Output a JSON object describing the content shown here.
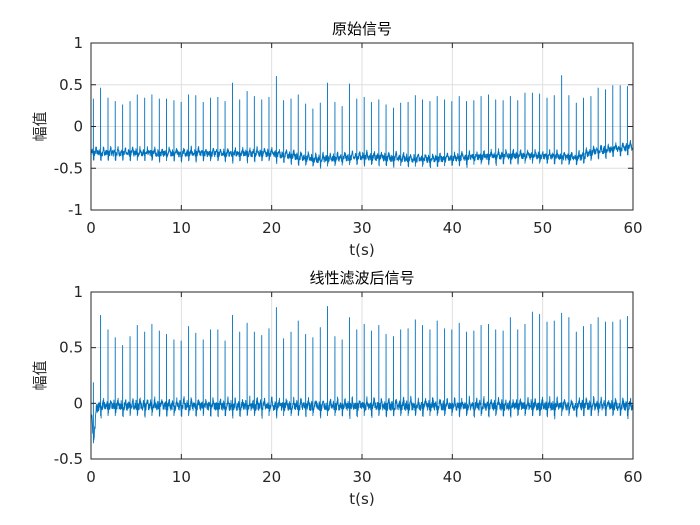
{
  "figure": {
    "background": "#ffffff",
    "line_color": "#0072BD",
    "grid_color": "#dfdfdf",
    "axis_color": "#262626"
  },
  "chart_data": [
    {
      "type": "line",
      "title": "原始信号",
      "xlabel": "t(s)",
      "ylabel": "幅值",
      "xlim": [
        0,
        60
      ],
      "ylim": [
        -1,
        1
      ],
      "xticks": [
        0,
        10,
        20,
        30,
        40,
        50,
        60
      ],
      "xtick_labels": [
        "0",
        "10",
        "20",
        "30",
        "40",
        "50",
        "60"
      ],
      "yticks": [
        -1,
        -0.5,
        0,
        0.5,
        1
      ],
      "ytick_labels": [
        "-1",
        "-0.5",
        "0",
        "0.5",
        "1"
      ],
      "grid": true,
      "series": [
        {
          "name": "原始信号",
          "description": "ECG-like signal, ~74 beats over 60 s, baseline wander around -0.35",
          "beat_period_s": 0.81,
          "first_beat_s": 0.25,
          "baseline": [
            [
              0,
              -0.32
            ],
            [
              10,
              -0.33
            ],
            [
              20,
              -0.33
            ],
            [
              25,
              -0.4
            ],
            [
              30,
              -0.37
            ],
            [
              37,
              -0.4
            ],
            [
              45,
              -0.36
            ],
            [
              50,
              -0.36
            ],
            [
              54,
              -0.38
            ],
            [
              56,
              -0.3
            ],
            [
              60,
              -0.25
            ]
          ],
          "peaks": [
            0.33,
            0.46,
            0.34,
            0.3,
            0.26,
            0.3,
            0.38,
            0.34,
            0.38,
            0.33,
            0.33,
            0.31,
            0.29,
            0.38,
            0.37,
            0.29,
            0.34,
            0.35,
            0.3,
            0.52,
            0.32,
            0.42,
            0.36,
            0.32,
            0.35,
            0.6,
            0.31,
            0.33,
            0.38,
            0.27,
            0.21,
            0.28,
            0.52,
            0.29,
            0.24,
            0.51,
            0.33,
            0.35,
            0.29,
            0.32,
            0.26,
            0.22,
            0.28,
            0.29,
            0.37,
            0.32,
            0.3,
            0.36,
            0.32,
            0.3,
            0.36,
            0.3,
            0.31,
            0.36,
            0.38,
            0.32,
            0.31,
            0.36,
            0.31,
            0.4,
            0.4,
            0.39,
            0.34,
            0.37,
            0.61,
            0.37,
            0.28,
            0.34,
            0.36,
            0.46,
            0.44,
            0.49,
            0.49,
            0.48,
            0.43
          ]
        }
      ]
    },
    {
      "type": "line",
      "title": "线性滤波后信号",
      "xlabel": "t(s)",
      "ylabel": "幅值",
      "xlim": [
        0,
        60
      ],
      "ylim": [
        -0.5,
        1
      ],
      "xticks": [
        0,
        10,
        20,
        30,
        40,
        50,
        60
      ],
      "xtick_labels": [
        "0",
        "10",
        "20",
        "30",
        "40",
        "50",
        "60"
      ],
      "yticks": [
        -0.5,
        0,
        0.5,
        1
      ],
      "ytick_labels": [
        "-0.5",
        "0",
        "0.5",
        "1"
      ],
      "grid": true,
      "series": [
        {
          "name": "线性滤波后信号",
          "description": "Baseline-corrected signal centered near -0.03, initial dip to -0.28 near t=0.3s",
          "beat_period_s": 0.81,
          "first_beat_s": 0.25,
          "baseline": [
            [
              0,
              -0.03
            ],
            [
              60,
              -0.03
            ]
          ],
          "initial_dip": -0.28,
          "peaks": [
            0.43,
            0.79,
            0.66,
            0.59,
            0.52,
            0.6,
            0.7,
            0.64,
            0.71,
            0.65,
            0.62,
            0.57,
            0.56,
            0.69,
            0.63,
            0.57,
            0.66,
            0.66,
            0.56,
            0.79,
            0.64,
            0.72,
            0.64,
            0.61,
            0.67,
            0.86,
            0.58,
            0.64,
            0.74,
            0.62,
            0.59,
            0.68,
            0.87,
            0.6,
            0.57,
            0.77,
            0.66,
            0.71,
            0.65,
            0.7,
            0.62,
            0.6,
            0.66,
            0.67,
            0.75,
            0.7,
            0.66,
            0.74,
            0.67,
            0.66,
            0.72,
            0.64,
            0.65,
            0.7,
            0.71,
            0.66,
            0.65,
            0.77,
            0.66,
            0.71,
            0.82,
            0.8,
            0.73,
            0.74,
            0.81,
            0.77,
            0.64,
            0.69,
            0.71,
            0.77,
            0.73,
            0.73,
            0.75,
            0.78,
            0.7
          ]
        }
      ]
    }
  ]
}
